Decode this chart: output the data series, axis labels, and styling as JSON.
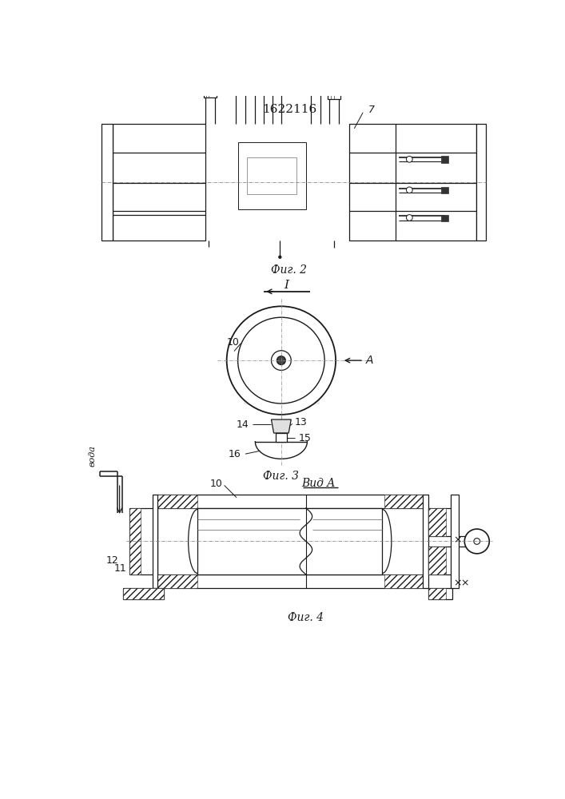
{
  "title": "1622116",
  "fig2_label": "Фиг. 2",
  "fig3_label": "Фиг. 3",
  "fig4_label": "Фиг. 4",
  "view_label": "Вид A",
  "section_label": "I",
  "water_label": "вода",
  "label_A": "A",
  "label_7": "7",
  "label_10_fig3": "10",
  "label_10_fig4": "10",
  "label_13": "13",
  "label_14": "14",
  "label_15": "15",
  "label_16": "16",
  "label_11": "11",
  "label_12": "12",
  "line_color": "#1a1a1a",
  "bg_color": "#ffffff"
}
